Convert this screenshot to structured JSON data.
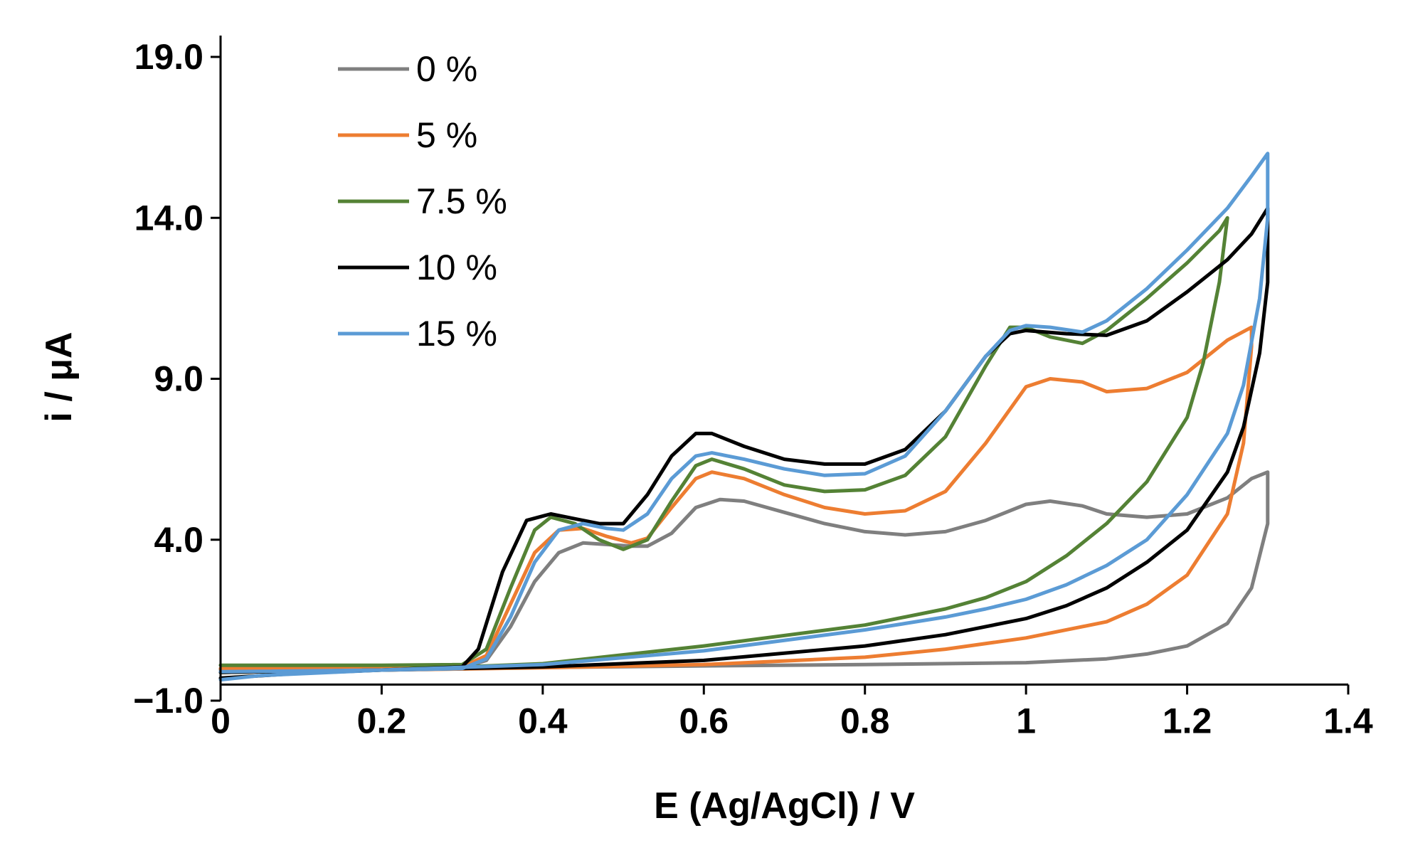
{
  "chart_data": {
    "type": "line",
    "title": "",
    "xlabel": "E (Ag/AgCl) / V",
    "ylabel": "i / μA",
    "xlim": [
      0,
      1.4
    ],
    "ylim": [
      -1.0,
      20.0
    ],
    "x_ticks": [
      0,
      0.2,
      0.4,
      0.6,
      0.8,
      1.0,
      1.2,
      1.4
    ],
    "x_tick_labels": [
      "0",
      "0.2",
      "0.4",
      "0.6",
      "0.8",
      "1",
      "1.2",
      "1.4"
    ],
    "y_ticks": [
      -1.0,
      4.0,
      9.0,
      14.0,
      19.0
    ],
    "y_tick_labels": [
      "−1.0",
      "4.0",
      "9.0",
      "14.0",
      "19.0"
    ],
    "grid": false,
    "legend_position": "top-left",
    "series": [
      {
        "name": "0 %",
        "label": "0 %",
        "color": "#7f7f7f",
        "points": [
          [
            0,
            0.0
          ],
          [
            0.2,
            0.0
          ],
          [
            0.3,
            0.02
          ],
          [
            0.33,
            0.25
          ],
          [
            0.36,
            1.3
          ],
          [
            0.39,
            2.7
          ],
          [
            0.42,
            3.6
          ],
          [
            0.45,
            3.9
          ],
          [
            0.48,
            3.85
          ],
          [
            0.51,
            3.8
          ],
          [
            0.53,
            3.8
          ],
          [
            0.56,
            4.2
          ],
          [
            0.59,
            5.0
          ],
          [
            0.62,
            5.25
          ],
          [
            0.65,
            5.2
          ],
          [
            0.7,
            4.85
          ],
          [
            0.75,
            4.5
          ],
          [
            0.8,
            4.25
          ],
          [
            0.85,
            4.15
          ],
          [
            0.9,
            4.25
          ],
          [
            0.95,
            4.6
          ],
          [
            1.0,
            5.1
          ],
          [
            1.03,
            5.2
          ],
          [
            1.07,
            5.05
          ],
          [
            1.1,
            4.8
          ],
          [
            1.15,
            4.7
          ],
          [
            1.2,
            4.8
          ],
          [
            1.25,
            5.3
          ],
          [
            1.28,
            5.9
          ],
          [
            1.3,
            6.1
          ],
          [
            1.3,
            4.5
          ],
          [
            1.28,
            2.5
          ],
          [
            1.25,
            1.4
          ],
          [
            1.2,
            0.7
          ],
          [
            1.15,
            0.45
          ],
          [
            1.1,
            0.3
          ],
          [
            1.0,
            0.18
          ],
          [
            0.8,
            0.12
          ],
          [
            0.6,
            0.08
          ],
          [
            0.4,
            0.03
          ],
          [
            0.2,
            0.0
          ],
          [
            0.05,
            -0.02
          ],
          [
            0,
            -0.04
          ]
        ]
      },
      {
        "name": "5 %",
        "label": "5 %",
        "color": "#ed7d31",
        "points": [
          [
            0,
            0.0
          ],
          [
            0.2,
            0.02
          ],
          [
            0.3,
            0.05
          ],
          [
            0.33,
            0.4
          ],
          [
            0.36,
            2.0
          ],
          [
            0.39,
            3.6
          ],
          [
            0.42,
            4.3
          ],
          [
            0.45,
            4.35
          ],
          [
            0.48,
            4.1
          ],
          [
            0.51,
            3.9
          ],
          [
            0.53,
            4.05
          ],
          [
            0.56,
            5.0
          ],
          [
            0.59,
            5.9
          ],
          [
            0.61,
            6.1
          ],
          [
            0.65,
            5.9
          ],
          [
            0.7,
            5.4
          ],
          [
            0.75,
            5.0
          ],
          [
            0.8,
            4.8
          ],
          [
            0.85,
            4.9
          ],
          [
            0.9,
            5.5
          ],
          [
            0.95,
            7.0
          ],
          [
            1.0,
            8.75
          ],
          [
            1.03,
            9.0
          ],
          [
            1.07,
            8.9
          ],
          [
            1.1,
            8.6
          ],
          [
            1.15,
            8.7
          ],
          [
            1.2,
            9.2
          ],
          [
            1.25,
            10.2
          ],
          [
            1.28,
            10.6
          ],
          [
            1.28,
            10.0
          ],
          [
            1.27,
            7.0
          ],
          [
            1.25,
            4.8
          ],
          [
            1.2,
            2.9
          ],
          [
            1.15,
            2.0
          ],
          [
            1.1,
            1.45
          ],
          [
            1.0,
            0.95
          ],
          [
            0.9,
            0.6
          ],
          [
            0.8,
            0.35
          ],
          [
            0.6,
            0.12
          ],
          [
            0.4,
            0.02
          ],
          [
            0.2,
            -0.05
          ],
          [
            0,
            -0.12
          ]
        ]
      },
      {
        "name": "7.5 %",
        "label": "7.5 %",
        "color": "#548235",
        "points": [
          [
            0,
            0.1
          ],
          [
            0.2,
            0.1
          ],
          [
            0.3,
            0.12
          ],
          [
            0.33,
            0.6
          ],
          [
            0.36,
            2.5
          ],
          [
            0.39,
            4.3
          ],
          [
            0.41,
            4.7
          ],
          [
            0.44,
            4.5
          ],
          [
            0.47,
            4.0
          ],
          [
            0.5,
            3.7
          ],
          [
            0.53,
            4.0
          ],
          [
            0.56,
            5.2
          ],
          [
            0.59,
            6.3
          ],
          [
            0.61,
            6.5
          ],
          [
            0.65,
            6.2
          ],
          [
            0.7,
            5.7
          ],
          [
            0.75,
            5.5
          ],
          [
            0.8,
            5.55
          ],
          [
            0.85,
            6.0
          ],
          [
            0.9,
            7.2
          ],
          [
            0.95,
            9.4
          ],
          [
            0.98,
            10.6
          ],
          [
            1.0,
            10.6
          ],
          [
            1.03,
            10.3
          ],
          [
            1.07,
            10.1
          ],
          [
            1.1,
            10.5
          ],
          [
            1.15,
            11.5
          ],
          [
            1.2,
            12.6
          ],
          [
            1.24,
            13.6
          ],
          [
            1.25,
            14.0
          ],
          [
            1.24,
            12.0
          ],
          [
            1.22,
            9.5
          ],
          [
            1.2,
            7.8
          ],
          [
            1.15,
            5.8
          ],
          [
            1.1,
            4.5
          ],
          [
            1.05,
            3.5
          ],
          [
            1.0,
            2.7
          ],
          [
            0.95,
            2.2
          ],
          [
            0.9,
            1.85
          ],
          [
            0.8,
            1.35
          ],
          [
            0.6,
            0.7
          ],
          [
            0.4,
            0.15
          ],
          [
            0.2,
            -0.05
          ],
          [
            0,
            -0.12
          ]
        ]
      },
      {
        "name": "10 %",
        "label": "10 %",
        "color": "#000000",
        "points": [
          [
            0,
            -0.3
          ],
          [
            0.1,
            -0.15
          ],
          [
            0.2,
            -0.05
          ],
          [
            0.3,
            0.05
          ],
          [
            0.32,
            0.6
          ],
          [
            0.35,
            3.0
          ],
          [
            0.38,
            4.6
          ],
          [
            0.41,
            4.8
          ],
          [
            0.44,
            4.65
          ],
          [
            0.47,
            4.5
          ],
          [
            0.5,
            4.5
          ],
          [
            0.53,
            5.4
          ],
          [
            0.56,
            6.6
          ],
          [
            0.59,
            7.3
          ],
          [
            0.61,
            7.3
          ],
          [
            0.65,
            6.9
          ],
          [
            0.7,
            6.5
          ],
          [
            0.75,
            6.35
          ],
          [
            0.8,
            6.35
          ],
          [
            0.85,
            6.8
          ],
          [
            0.9,
            8.0
          ],
          [
            0.95,
            9.7
          ],
          [
            0.98,
            10.4
          ],
          [
            1.0,
            10.5
          ],
          [
            1.05,
            10.4
          ],
          [
            1.1,
            10.35
          ],
          [
            1.15,
            10.8
          ],
          [
            1.2,
            11.7
          ],
          [
            1.25,
            12.7
          ],
          [
            1.28,
            13.5
          ],
          [
            1.3,
            14.3
          ],
          [
            1.3,
            12.0
          ],
          [
            1.29,
            9.8
          ],
          [
            1.27,
            7.5
          ],
          [
            1.25,
            6.1
          ],
          [
            1.2,
            4.3
          ],
          [
            1.15,
            3.3
          ],
          [
            1.1,
            2.5
          ],
          [
            1.05,
            1.95
          ],
          [
            1.0,
            1.55
          ],
          [
            0.9,
            1.05
          ],
          [
            0.8,
            0.7
          ],
          [
            0.6,
            0.25
          ],
          [
            0.4,
            0.05
          ],
          [
            0.2,
            -0.05
          ],
          [
            0,
            -0.12
          ]
        ]
      },
      {
        "name": "15 %",
        "label": "15 %",
        "color": "#5b9bd5",
        "points": [
          [
            0,
            -0.1
          ],
          [
            0.2,
            -0.05
          ],
          [
            0.3,
            0.0
          ],
          [
            0.33,
            0.3
          ],
          [
            0.36,
            1.6
          ],
          [
            0.39,
            3.3
          ],
          [
            0.42,
            4.3
          ],
          [
            0.45,
            4.5
          ],
          [
            0.48,
            4.35
          ],
          [
            0.5,
            4.3
          ],
          [
            0.53,
            4.8
          ],
          [
            0.56,
            5.9
          ],
          [
            0.59,
            6.6
          ],
          [
            0.61,
            6.7
          ],
          [
            0.65,
            6.5
          ],
          [
            0.7,
            6.2
          ],
          [
            0.75,
            6.0
          ],
          [
            0.8,
            6.05
          ],
          [
            0.85,
            6.6
          ],
          [
            0.9,
            8.0
          ],
          [
            0.95,
            9.7
          ],
          [
            0.98,
            10.5
          ],
          [
            1.0,
            10.65
          ],
          [
            1.03,
            10.6
          ],
          [
            1.07,
            10.45
          ],
          [
            1.1,
            10.8
          ],
          [
            1.15,
            11.8
          ],
          [
            1.2,
            13.0
          ],
          [
            1.25,
            14.3
          ],
          [
            1.28,
            15.3
          ],
          [
            1.3,
            16.0
          ],
          [
            1.3,
            14.0
          ],
          [
            1.29,
            11.5
          ],
          [
            1.27,
            8.8
          ],
          [
            1.25,
            7.3
          ],
          [
            1.2,
            5.4
          ],
          [
            1.15,
            4.0
          ],
          [
            1.1,
            3.2
          ],
          [
            1.05,
            2.6
          ],
          [
            1.0,
            2.15
          ],
          [
            0.95,
            1.85
          ],
          [
            0.9,
            1.6
          ],
          [
            0.8,
            1.2
          ],
          [
            0.6,
            0.55
          ],
          [
            0.4,
            0.12
          ],
          [
            0.2,
            -0.05
          ],
          [
            0.05,
            -0.22
          ],
          [
            0,
            -0.35
          ]
        ]
      }
    ]
  }
}
